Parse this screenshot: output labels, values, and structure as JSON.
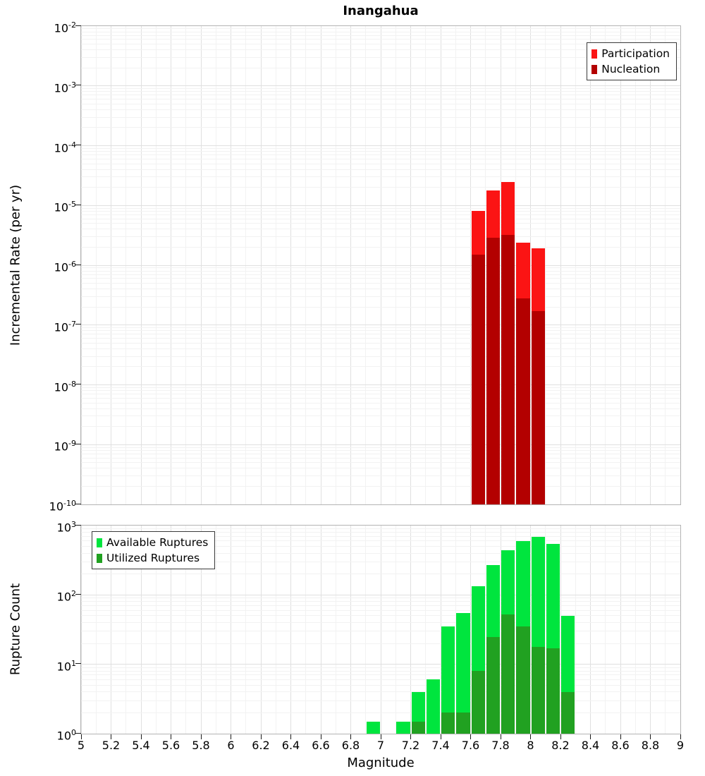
{
  "title": "Inangahua",
  "x_axis": {
    "label": "Magnitude",
    "min": 5,
    "max": 9,
    "tick_labels": [
      "5",
      "5.2",
      "5.4",
      "5.6",
      "5.8",
      "6",
      "6.2",
      "6.4",
      "6.6",
      "6.8",
      "7",
      "7.2",
      "7.4",
      "7.6",
      "7.8",
      "8",
      "8.2",
      "8.4",
      "8.6",
      "8.8",
      "9"
    ]
  },
  "colors": {
    "participation": "#fb1414",
    "nucleation": "#b30000",
    "available": "#00e53e",
    "utilized": "#21a121",
    "grid_minor": "#f2f2f2",
    "grid_major": "#e0e0e0",
    "frame": "#b4b4b4"
  },
  "chart_data": [
    {
      "type": "bar",
      "panel": "top",
      "title": "Inangahua",
      "ylabel": "Incremental Rate (per yr)",
      "yscale": "log",
      "xlim": [
        5,
        9
      ],
      "ylim_exponents": [
        -10,
        -2
      ],
      "y_tick_exponents": [
        -2,
        -3,
        -4,
        -5,
        -6,
        -7,
        -8,
        -9,
        -10
      ],
      "bin_width": 0.1,
      "grid": true,
      "legend_position": "top-right",
      "legend": [
        {
          "label": "Participation",
          "color": "#fb1414"
        },
        {
          "label": "Nucleation",
          "color": "#b30000"
        }
      ],
      "series": [
        {
          "name": "Participation",
          "color": "#fb1414",
          "x": [
            7.65,
            7.75,
            7.85,
            7.95,
            8.05
          ],
          "values": [
            8e-06,
            1.8e-05,
            2.5e-05,
            2.4e-06,
            1.9e-06
          ]
        },
        {
          "name": "Nucleation",
          "color": "#b30000",
          "x": [
            7.65,
            7.75,
            7.85,
            7.95,
            8.05
          ],
          "values": [
            1.5e-06,
            2.9e-06,
            3.2e-06,
            2.8e-07,
            1.7e-07
          ]
        }
      ]
    },
    {
      "type": "bar",
      "panel": "bottom",
      "title": "",
      "ylabel": "Rupture Count",
      "yscale": "log",
      "xlim": [
        5,
        9
      ],
      "ylim_exponents": [
        0,
        3
      ],
      "y_tick_exponents": [
        3,
        2,
        1,
        0
      ],
      "bin_width": 0.1,
      "grid": true,
      "legend_position": "top-left",
      "legend": [
        {
          "label": "Available Ruptures",
          "color": "#00e53e"
        },
        {
          "label": "Utilized Ruptures",
          "color": "#21a121"
        }
      ],
      "series": [
        {
          "name": "Available Ruptures",
          "color": "#00e53e",
          "x": [
            6.95,
            7.15,
            7.25,
            7.35,
            7.45,
            7.55,
            7.65,
            7.75,
            7.85,
            7.95,
            8.05,
            8.15,
            8.25
          ],
          "values": [
            1,
            1,
            4,
            6,
            35,
            55,
            135,
            270,
            440,
            600,
            690,
            550,
            50
          ]
        },
        {
          "name": "Utilized Ruptures",
          "color": "#21a121",
          "x": [
            7.25,
            7.45,
            7.55,
            7.65,
            7.75,
            7.85,
            7.95,
            8.05,
            8.15,
            8.25
          ],
          "values": [
            1,
            2,
            2,
            8,
            25,
            52,
            35,
            18,
            17,
            4
          ]
        }
      ]
    }
  ]
}
